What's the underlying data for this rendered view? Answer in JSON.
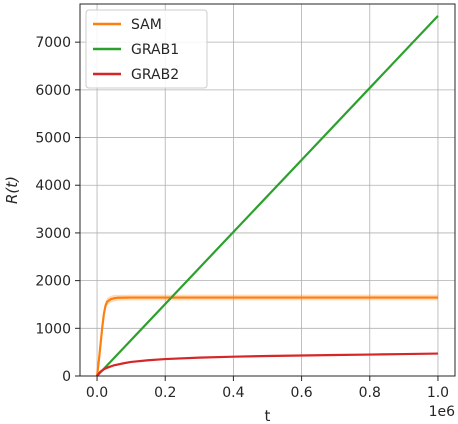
{
  "chart_data": {
    "type": "line",
    "title": "",
    "xlabel": "t",
    "ylabel": "R(t)",
    "x_offset_label": "1e6",
    "xlim": [
      -0.05,
      1.05
    ],
    "ylim": [
      0,
      7800
    ],
    "xticks": [
      0.0,
      0.2,
      0.4,
      0.6,
      0.8,
      1.0
    ],
    "xtick_labels": [
      "0.0",
      "0.2",
      "0.4",
      "0.6",
      "0.8",
      "1.0"
    ],
    "yticks": [
      0,
      1000,
      2000,
      3000,
      4000,
      5000,
      6000,
      7000
    ],
    "ytick_labels": [
      "0",
      "1000",
      "2000",
      "3000",
      "4000",
      "5000",
      "6000",
      "7000"
    ],
    "grid": true,
    "legend": "top-left",
    "x_scale_note": "x values in units of 1e6",
    "series": [
      {
        "name": "SAM",
        "color": "#ff7f0e",
        "x": [
          0.0,
          0.005,
          0.01,
          0.015,
          0.02,
          0.025,
          0.03,
          0.04,
          0.05,
          0.06,
          0.1,
          0.2,
          0.4,
          0.6,
          0.8,
          1.0
        ],
        "y": [
          0,
          300,
          650,
          1000,
          1300,
          1480,
          1560,
          1610,
          1630,
          1640,
          1645,
          1645,
          1645,
          1645,
          1645,
          1645
        ],
        "band": [
          0,
          30,
          50,
          70,
          80,
          80,
          80,
          70,
          70,
          60,
          60,
          60,
          60,
          60,
          60,
          60
        ]
      },
      {
        "name": "GRAB1",
        "color": "#2ca02c",
        "x": [
          0.0,
          0.2,
          0.4,
          0.6,
          0.8,
          1.0
        ],
        "y": [
          0,
          1510,
          3020,
          4530,
          6040,
          7550
        ]
      },
      {
        "name": "GRAB2",
        "color": "#d62728",
        "x": [
          0.0,
          0.005,
          0.01,
          0.02,
          0.03,
          0.05,
          0.08,
          0.1,
          0.15,
          0.2,
          0.3,
          0.4,
          0.5,
          0.6,
          0.7,
          0.8,
          0.9,
          1.0
        ],
        "y": [
          0,
          50,
          90,
          140,
          175,
          225,
          270,
          295,
          330,
          355,
          385,
          405,
          420,
          430,
          440,
          450,
          460,
          470
        ]
      }
    ]
  }
}
